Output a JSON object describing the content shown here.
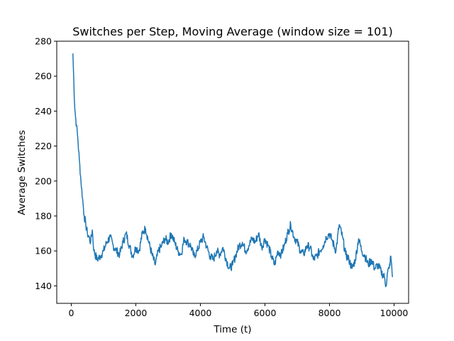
{
  "chart_data": {
    "type": "line",
    "title": "Switches per Step, Moving Average (window size = 101)",
    "xlabel": "Time (t)",
    "ylabel": "Average Switches",
    "xlim": [
      -450,
      10450
    ],
    "ylim": [
      130,
      280
    ],
    "xticks": [
      0,
      2000,
      4000,
      6000,
      8000,
      10000
    ],
    "yticks": [
      140,
      160,
      180,
      200,
      220,
      240,
      260,
      280
    ],
    "xtick_labels": [
      "0",
      "2000",
      "4000",
      "6000",
      "8000",
      "10000"
    ],
    "ytick_labels": [
      "140",
      "160",
      "180",
      "200",
      "220",
      "240",
      "260",
      "280"
    ],
    "grid": false,
    "legend": "none",
    "series": [
      {
        "color": "#1f77b4",
        "x": [
          50,
          70,
          100,
          130,
          160,
          200,
          250,
          300,
          350,
          400,
          450,
          500,
          550,
          600,
          650,
          700,
          800,
          900,
          1000,
          1100,
          1200,
          1300,
          1400,
          1500,
          1600,
          1700,
          1800,
          1900,
          2000,
          2100,
          2200,
          2300,
          2400,
          2500,
          2600,
          2700,
          2800,
          2900,
          3000,
          3100,
          3200,
          3300,
          3400,
          3500,
          3600,
          3700,
          3800,
          3900,
          4000,
          4100,
          4200,
          4300,
          4400,
          4500,
          4600,
          4700,
          4800,
          4900,
          5000,
          5100,
          5200,
          5300,
          5400,
          5500,
          5600,
          5700,
          5800,
          5900,
          6000,
          6100,
          6200,
          6300,
          6400,
          6500,
          6600,
          6700,
          6800,
          6900,
          7000,
          7100,
          7200,
          7300,
          7400,
          7500,
          7600,
          7700,
          7800,
          7900,
          8000,
          8100,
          8200,
          8300,
          8400,
          8500,
          8600,
          8700,
          8800,
          8900,
          9000,
          9100,
          9200,
          9300,
          9400,
          9500,
          9600,
          9700,
          9750,
          9800,
          9850,
          9900,
          9950
        ],
        "y": [
          273,
          262,
          245,
          237,
          232,
          225,
          212,
          200,
          190,
          180,
          175,
          170,
          168,
          165,
          172,
          160,
          155,
          157,
          160,
          165,
          168,
          163,
          160,
          158,
          165,
          170,
          163,
          157,
          162,
          160,
          170,
          173,
          165,
          158,
          152,
          160,
          163,
          167,
          165,
          170,
          165,
          160,
          158,
          167,
          165,
          163,
          157,
          160,
          165,
          168,
          162,
          157,
          155,
          160,
          158,
          162,
          155,
          150,
          152,
          158,
          163,
          165,
          160,
          163,
          167,
          165,
          170,
          162,
          167,
          163,
          157,
          152,
          160,
          158,
          163,
          170,
          175,
          168,
          165,
          160,
          158,
          163,
          162,
          155,
          157,
          160,
          163,
          168,
          170,
          165,
          160,
          175,
          168,
          158,
          155,
          150,
          155,
          167,
          160,
          157,
          152,
          155,
          150,
          152,
          148,
          145,
          140,
          148,
          150,
          157,
          145
        ]
      }
    ]
  }
}
